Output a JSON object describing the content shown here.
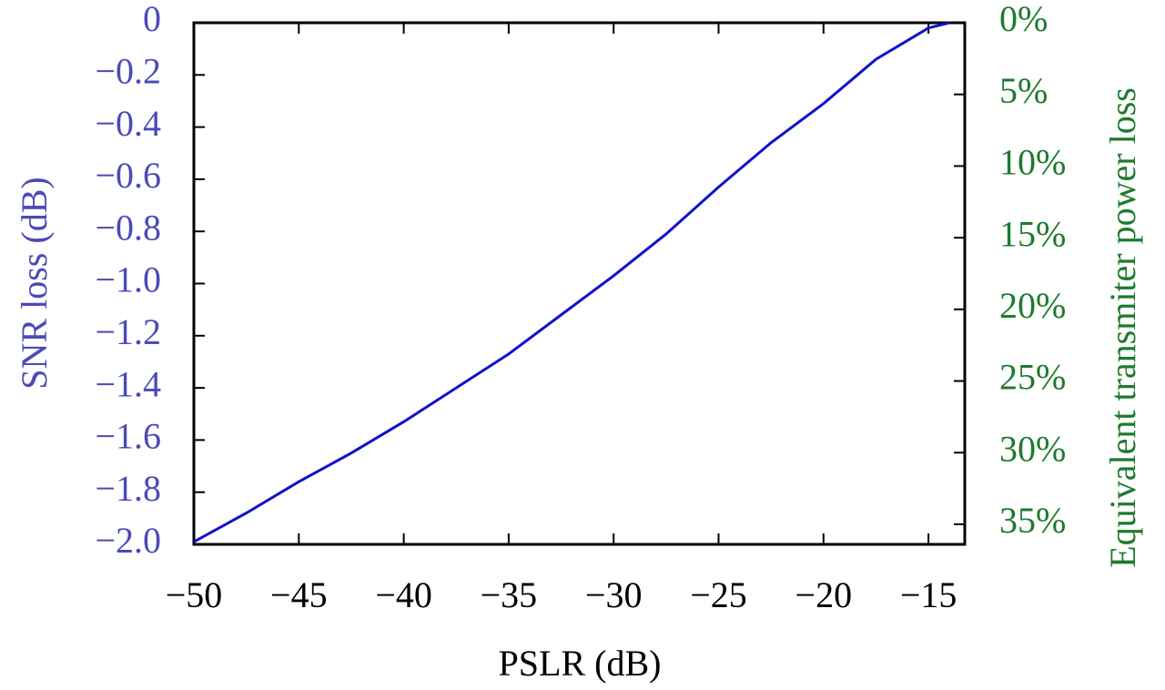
{
  "chart_data": {
    "type": "line",
    "x_label": "PSLR (dB)",
    "y_label": "SNR loss (dB)",
    "y2_label": "Equivalent transmiter power loss",
    "x": [
      -50,
      -47.5,
      -45,
      -42.5,
      -40,
      -37.5,
      -35,
      -32.5,
      -30,
      -27.5,
      -25,
      -22.5,
      -20,
      -17.5,
      -15,
      -14
    ],
    "series": [
      {
        "color": "#1010cc",
        "values": [
          -1.99,
          -1.88,
          -1.76,
          -1.65,
          -1.53,
          -1.4,
          -1.27,
          -1.12,
          -0.97,
          -0.81,
          -0.63,
          -0.46,
          -0.31,
          -0.14,
          -0.02,
          0
        ]
      }
    ],
    "xlim": [
      -50,
      -13.27
    ],
    "ylim": [
      -2.0,
      0
    ],
    "y2lim": [
      36.4,
      0
    ],
    "xticks": [
      {
        "value": -50,
        "label": "−50"
      },
      {
        "value": -45,
        "label": "−45"
      },
      {
        "value": -40,
        "label": "−40"
      },
      {
        "value": -35,
        "label": "−35"
      },
      {
        "value": -30,
        "label": "−30"
      },
      {
        "value": -25,
        "label": "−25"
      },
      {
        "value": -20,
        "label": "−20"
      },
      {
        "value": -15,
        "label": "−15"
      }
    ],
    "yticks": [
      {
        "value": -2.0,
        "label": "−2.0"
      },
      {
        "value": -1.8,
        "label": "−1.8"
      },
      {
        "value": -1.6,
        "label": "−1.6"
      },
      {
        "value": -1.4,
        "label": "−1.4"
      },
      {
        "value": -1.2,
        "label": "−1.2"
      },
      {
        "value": -1.0,
        "label": "−1.0"
      },
      {
        "value": -0.8,
        "label": "−0.8"
      },
      {
        "value": -0.6,
        "label": "−0.6"
      },
      {
        "value": -0.4,
        "label": "−0.4"
      },
      {
        "value": -0.2,
        "label": "−0.2"
      },
      0
    ],
    "y2ticks": [
      {
        "value": 0,
        "label": "0%"
      },
      {
        "value": 5,
        "label": "5%"
      },
      {
        "value": 10,
        "label": "10%"
      },
      {
        "value": 15,
        "label": "15%"
      },
      {
        "value": 20,
        "label": "20%"
      },
      {
        "value": 25,
        "label": "25%"
      },
      {
        "value": 30,
        "label": "30%"
      },
      {
        "value": 35,
        "label": "35%"
      }
    ],
    "y_color": "#4a4ab8",
    "y2_color": "#1e7a2e",
    "grid": false
  }
}
